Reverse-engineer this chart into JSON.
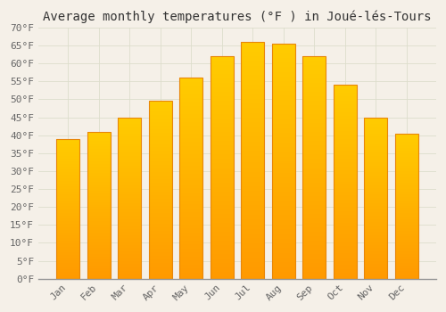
{
  "title": "Average monthly temperatures (°F ) in Joué-lés-Tours",
  "months": [
    "Jan",
    "Feb",
    "Mar",
    "Apr",
    "May",
    "Jun",
    "Jul",
    "Aug",
    "Sep",
    "Oct",
    "Nov",
    "Dec"
  ],
  "values": [
    39,
    41,
    45,
    49.5,
    56,
    62,
    66,
    65.5,
    62,
    54,
    45,
    40.5
  ],
  "bar_color_top": "#FFCC00",
  "bar_color_bottom": "#FF9900",
  "bar_edge_color": "#E8860A",
  "ylim": [
    0,
    70
  ],
  "yticks": [
    0,
    5,
    10,
    15,
    20,
    25,
    30,
    35,
    40,
    45,
    50,
    55,
    60,
    65,
    70
  ],
  "background_color": "#F5F0E8",
  "plot_bg_color": "#F5F0E8",
  "grid_color": "#DDDDCC",
  "title_fontsize": 10,
  "tick_fontsize": 8,
  "font_family": "monospace",
  "title_color": "#333333",
  "tick_color": "#666666"
}
